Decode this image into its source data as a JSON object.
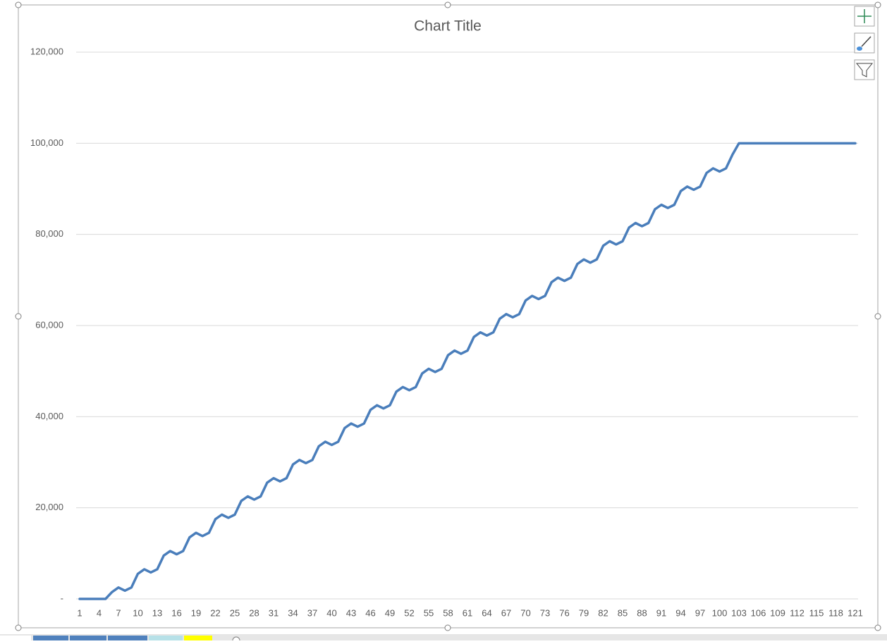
{
  "chart_data": {
    "type": "line",
    "title": "Chart Title",
    "categories": [
      1,
      null,
      null,
      4,
      null,
      null,
      7,
      null,
      null,
      10,
      null,
      null,
      13,
      null,
      null,
      16,
      null,
      null,
      19,
      null,
      null,
      22,
      null,
      null,
      25,
      null,
      null,
      28,
      null,
      null,
      31,
      null,
      null,
      34,
      null,
      null,
      37,
      null,
      null,
      40,
      null,
      null,
      43,
      null,
      null,
      46,
      null,
      null,
      49,
      null,
      null,
      52,
      null,
      null,
      55,
      null,
      null,
      58,
      null,
      null,
      61,
      null,
      null,
      64,
      null,
      null,
      67,
      null,
      null,
      70,
      null,
      null,
      73,
      null,
      null,
      76,
      null,
      null,
      79,
      null,
      null,
      82,
      null,
      null,
      85,
      null,
      null,
      88,
      null,
      null,
      91,
      null,
      null,
      94,
      null,
      null,
      97,
      null,
      null,
      100,
      null,
      null,
      103,
      null,
      null,
      106,
      null,
      null,
      109,
      null,
      null,
      112,
      null,
      null,
      115,
      null,
      null,
      118,
      null,
      null,
      121
    ],
    "values": [
      0,
      0,
      0,
      0,
      0,
      1500,
      2500,
      1800,
      2500,
      5500,
      6500,
      5800,
      6500,
      9500,
      10500,
      9800,
      10500,
      13500,
      14500,
      13800,
      14500,
      17500,
      18500,
      17800,
      18500,
      21500,
      22500,
      21800,
      22500,
      25500,
      26500,
      25800,
      26500,
      29500,
      30500,
      29800,
      30500,
      33500,
      34500,
      33800,
      34500,
      37500,
      38500,
      37800,
      38500,
      41500,
      42500,
      41800,
      42500,
      45500,
      46500,
      45800,
      46500,
      49500,
      50500,
      49800,
      50500,
      53500,
      54500,
      53800,
      54500,
      57500,
      58500,
      57800,
      58500,
      61500,
      62500,
      61800,
      62500,
      65500,
      66500,
      65800,
      66500,
      69500,
      70500,
      69800,
      70500,
      73500,
      74500,
      73800,
      74500,
      77500,
      78500,
      77800,
      78500,
      81500,
      82500,
      81800,
      82500,
      85500,
      86500,
      85800,
      86500,
      89500,
      90500,
      89800,
      90500,
      93500,
      94500,
      93800,
      94500,
      97500,
      100000,
      100000,
      100000,
      100000,
      100000,
      100000,
      100000,
      100000,
      100000,
      100000,
      100000,
      100000,
      100000,
      100000,
      100000,
      100000,
      100000,
      100000,
      100000
    ],
    "color": "#4a7ebb",
    "ylim": [
      0,
      120000
    ],
    "yticks": [
      {
        "value": 0,
        "label": "-"
      },
      {
        "value": 20000,
        "label": "20,000"
      },
      {
        "value": 40000,
        "label": "40,000"
      },
      {
        "value": 60000,
        "label": "60,000"
      },
      {
        "value": 80000,
        "label": "80,000"
      },
      {
        "value": 100000,
        "label": "100,000"
      },
      {
        "value": 120000,
        "label": "120,000"
      }
    ],
    "grid": true
  }
}
